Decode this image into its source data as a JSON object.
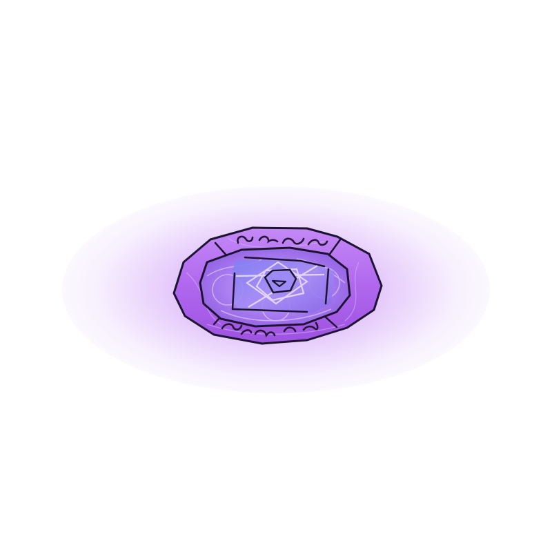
{
  "scene": {
    "object": "magic-portal-rune-circle",
    "colors": {
      "background": "#ffffff",
      "glow": "#b25cf0",
      "outer_ring": "#b56ef0",
      "outer_ring_edge": "#7a3bc0",
      "inner_disc": "#a06ee8",
      "center_panel": "#8b79f0",
      "outline": "#1c1430",
      "light_lines": "#e8d6ff"
    },
    "rune_marks": [
      "rune-glyph"
    ]
  }
}
